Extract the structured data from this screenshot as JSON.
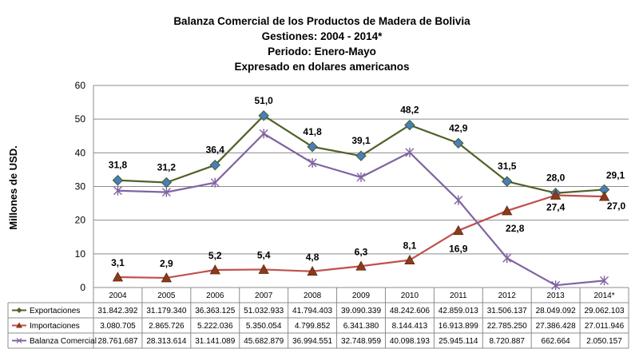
{
  "chart_data": {
    "type": "line",
    "title": [
      "Balanza Comercial de los Productos de Madera de Bolivia",
      "Gestiones: 2004 - 2014*",
      "Periodo: Enero-Mayo",
      "Expresado en dolares americanos"
    ],
    "ylabel": "Millones de USD.",
    "ylim": [
      0,
      60
    ],
    "yticks": [
      "0",
      "10",
      "20",
      "30",
      "40",
      "50",
      "60"
    ],
    "grid": true,
    "categories": [
      "2004",
      "2005",
      "2006",
      "2007",
      "2008",
      "2009",
      "2010",
      "2011",
      "2012",
      "2013",
      "2014*"
    ],
    "series": [
      {
        "name": "Exportaciones",
        "color": "#4F6228",
        "marker": "diamond",
        "marker_color": "#4A7EBB",
        "values": [
          31.842392,
          31.17934,
          36.363125,
          51.032933,
          41.794403,
          39.090339,
          48.242606,
          42.859013,
          31.506137,
          28.049092,
          29.062103
        ],
        "labels": [
          "31,8",
          "31,2",
          "36,4",
          "51,0",
          "41,8",
          "39,1",
          "48,2",
          "42,9",
          "31,5",
          "28,0",
          "29,1"
        ],
        "table": [
          "31.842.392",
          "31.179.340",
          "36.363.125",
          "51.032.933",
          "41.794.403",
          "39.090.339",
          "48.242.606",
          "42.859.013",
          "31.506.137",
          "28.049.092",
          "29.062.103"
        ]
      },
      {
        "name": "Importaciones",
        "color": "#C0504D",
        "marker": "triangle",
        "marker_color": "#8B3A1A",
        "values": [
          3.080705,
          2.865726,
          5.222036,
          5.350054,
          4.799852,
          6.34138,
          8.144413,
          16.913899,
          22.78525,
          27.386428,
          27.011946
        ],
        "labels": [
          "3,1",
          "2,9",
          "5,2",
          "5,4",
          "4,8",
          "6,3",
          "8,1",
          "16,9",
          "22,8",
          "27,4",
          "27,0"
        ],
        "table": [
          "3.080.705",
          "2.865.726",
          "5.222.036",
          "5.350.054",
          "4.799.852",
          "6.341.380",
          "8.144.413",
          "16.913.899",
          "22.785.250",
          "27.386.428",
          "27.011.946"
        ]
      },
      {
        "name": "Balanza Comercial",
        "color": "#8064A2",
        "marker": "star",
        "marker_color": "#8064A2",
        "values": [
          28.761687,
          28.313614,
          31.141089,
          45.682879,
          36.994551,
          32.748959,
          40.098193,
          25.945114,
          8.720887,
          0.662664,
          2.050157
        ],
        "labels": [],
        "table": [
          "28.761.687",
          "28.313.614",
          "31.141.089",
          "45.682.879",
          "36.994.551",
          "32.748.959",
          "40.098.193",
          "25.945.114",
          "8.720.887",
          "662.664",
          "2.050.157"
        ]
      }
    ]
  }
}
